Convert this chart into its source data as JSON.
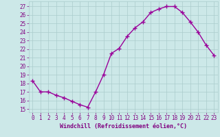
{
  "x": [
    0,
    1,
    2,
    3,
    4,
    5,
    6,
    7,
    8,
    9,
    10,
    11,
    12,
    13,
    14,
    15,
    16,
    17,
    18,
    19,
    20,
    21,
    22,
    23
  ],
  "y": [
    18.3,
    17.0,
    17.0,
    16.6,
    16.3,
    15.9,
    15.5,
    15.2,
    17.0,
    19.0,
    21.5,
    22.1,
    23.5,
    24.5,
    25.2,
    26.3,
    26.7,
    27.0,
    27.0,
    26.3,
    25.2,
    24.0,
    22.5,
    21.3
  ],
  "line_color": "#990099",
  "marker": "+",
  "bg_color": "#cce8e8",
  "grid_color": "#aacccc",
  "xlabel": "Windchill (Refroidissement éolien,°C)",
  "ylabel_ticks": [
    15,
    16,
    17,
    18,
    19,
    20,
    21,
    22,
    23,
    24,
    25,
    26,
    27
  ],
  "xlim": [
    -0.5,
    23.5
  ],
  "ylim": [
    14.6,
    27.6
  ],
  "xticks": [
    0,
    1,
    2,
    3,
    4,
    5,
    6,
    7,
    8,
    9,
    10,
    11,
    12,
    13,
    14,
    15,
    16,
    17,
    18,
    19,
    20,
    21,
    22,
    23
  ],
  "xtick_labels": [
    "0",
    "1",
    "2",
    "3",
    "4",
    "5",
    "6",
    "7",
    "8",
    "9",
    "10",
    "11",
    "12",
    "13",
    "14",
    "15",
    "16",
    "17",
    "18",
    "19",
    "20",
    "21",
    "22",
    "23"
  ],
  "font_color": "#800080",
  "tick_fontsize": 5.5,
  "label_fontsize": 6.0,
  "linewidth": 1.0,
  "markersize": 4,
  "markeredgewidth": 1.0
}
